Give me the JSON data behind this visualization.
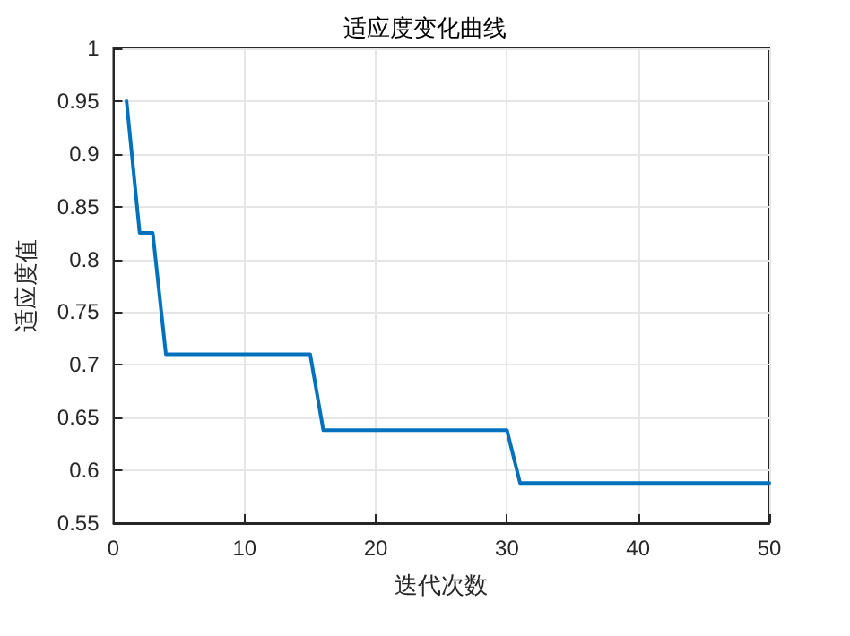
{
  "chart_data": {
    "type": "line",
    "title": "适应度变化曲线",
    "xlabel": "迭代次数",
    "ylabel": "适应度值",
    "x": [
      1,
      2,
      3,
      4,
      15,
      16,
      30,
      31,
      50
    ],
    "series": [
      {
        "color": "#0072bd",
        "values": [
          0.95,
          0.825,
          0.825,
          0.71,
          0.71,
          0.638,
          0.638,
          0.588,
          0.588
        ]
      }
    ],
    "xlim": [
      0,
      50
    ],
    "xticks": [
      0,
      10,
      20,
      30,
      40,
      50
    ],
    "ylim": [
      0.55,
      1
    ],
    "yticks": [
      0.55,
      0.6,
      0.65,
      0.7,
      0.75,
      0.8,
      0.85,
      0.9,
      0.95,
      1
    ],
    "grid": true,
    "marker": "none",
    "line_style": "solid"
  }
}
